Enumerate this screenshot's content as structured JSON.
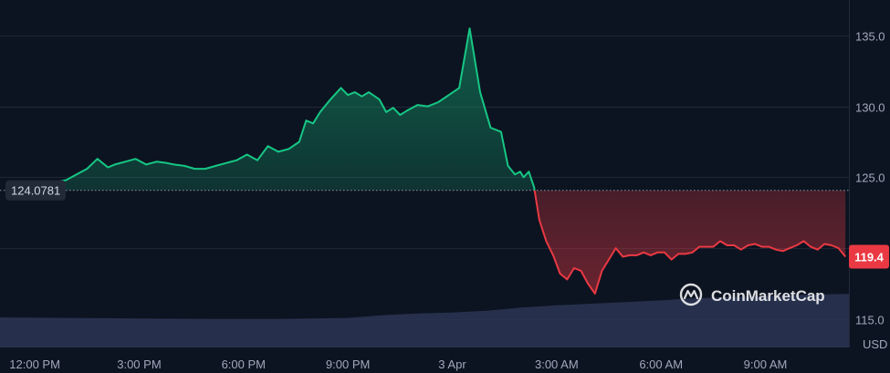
{
  "chart_data": {
    "type": "area",
    "baseline": 124.0781,
    "baseline_label": "124.0781",
    "last_value_label": "119.4",
    "currency": "USD",
    "ylim": [
      113.0,
      137.5
    ],
    "y_ticks": [
      {
        "value": 115.0,
        "label": "115.0"
      },
      {
        "value": 120.0,
        "label": "120.0"
      },
      {
        "value": 125.0,
        "label": "125.0"
      },
      {
        "value": 130.0,
        "label": "130.0"
      },
      {
        "value": 135.0,
        "label": "135.0"
      }
    ],
    "x_range": [
      -1.0,
      23.4
    ],
    "x_ticks": [
      {
        "t": 0,
        "label": "12:00 PM"
      },
      {
        "t": 3,
        "label": "3:00 PM"
      },
      {
        "t": 6,
        "label": "6:00 PM"
      },
      {
        "t": 9,
        "label": "9:00 PM"
      },
      {
        "t": 12,
        "label": "3 Apr"
      },
      {
        "t": 15,
        "label": "3:00 AM"
      },
      {
        "t": 18,
        "label": "6:00 AM"
      },
      {
        "t": 21,
        "label": "9:00 AM"
      }
    ],
    "price_series": {
      "t": [
        0.0,
        0.3,
        0.5,
        0.9,
        1.2,
        1.5,
        1.8,
        2.1,
        2.3,
        2.6,
        2.9,
        3.2,
        3.5,
        3.8,
        4.0,
        4.3,
        4.6,
        4.9,
        5.2,
        5.5,
        5.8,
        6.1,
        6.4,
        6.7,
        7.0,
        7.3,
        7.6,
        7.8,
        8.0,
        8.2,
        8.5,
        8.8,
        9.0,
        9.2,
        9.4,
        9.6,
        9.9,
        10.1,
        10.3,
        10.5,
        10.7,
        11.0,
        11.3,
        11.6,
        11.9,
        12.2,
        12.5,
        12.8,
        13.1,
        13.4,
        13.6,
        13.8,
        13.95,
        14.05,
        14.2,
        14.35,
        14.5,
        14.7,
        14.9,
        15.1,
        15.3,
        15.5,
        15.7,
        15.9,
        16.1,
        16.3,
        16.5,
        16.7,
        16.9,
        17.1,
        17.3,
        17.5,
        17.7,
        17.9,
        18.1,
        18.3,
        18.5,
        18.7,
        18.9,
        19.1,
        19.3,
        19.5,
        19.7,
        19.9,
        20.1,
        20.3,
        20.5,
        20.7,
        20.9,
        21.1,
        21.3,
        21.5,
        21.7,
        21.9,
        22.1,
        22.3,
        22.5,
        22.7,
        22.9,
        23.1,
        23.3
      ],
      "v": [
        124.6,
        124.4,
        124.6,
        124.8,
        125.2,
        125.6,
        126.3,
        125.7,
        125.9,
        126.1,
        126.3,
        125.9,
        126.1,
        126.0,
        125.9,
        125.8,
        125.6,
        125.6,
        125.8,
        126.0,
        126.2,
        126.6,
        126.2,
        127.2,
        126.8,
        127.0,
        127.5,
        129.0,
        128.8,
        129.6,
        130.5,
        131.3,
        130.8,
        131.0,
        130.7,
        131.0,
        130.5,
        129.6,
        129.9,
        129.4,
        129.7,
        130.1,
        130.0,
        130.3,
        130.8,
        131.3,
        135.5,
        131.0,
        128.5,
        128.2,
        125.8,
        125.2,
        125.4,
        125.0,
        125.4,
        124.3,
        122.0,
        120.5,
        119.5,
        118.2,
        117.8,
        118.6,
        118.4,
        117.5,
        116.8,
        118.4,
        119.2,
        120.0,
        119.4,
        119.5,
        119.5,
        119.7,
        119.5,
        119.7,
        119.7,
        119.2,
        119.6,
        119.6,
        119.7,
        120.1,
        120.1,
        120.1,
        120.5,
        120.2,
        120.2,
        119.9,
        120.2,
        120.3,
        120.1,
        120.1,
        119.9,
        119.8,
        120.0,
        120.2,
        120.5,
        120.1,
        119.9,
        120.3,
        120.2,
        120.0,
        119.4
      ]
    },
    "volume_series": {
      "t": [
        -1.0,
        1.0,
        3.0,
        5.0,
        7.0,
        9.0,
        10.0,
        11.0,
        12.0,
        13.0,
        14.0,
        15.0,
        16.0,
        17.0,
        18.0,
        19.0,
        20.0,
        21.0,
        22.0,
        23.4
      ],
      "v": [
        0.55,
        0.54,
        0.53,
        0.52,
        0.52,
        0.54,
        0.59,
        0.62,
        0.64,
        0.67,
        0.73,
        0.77,
        0.8,
        0.83,
        0.86,
        0.9,
        0.92,
        0.94,
        0.96,
        0.98
      ]
    }
  },
  "watermark": {
    "text": "CoinMarketCap"
  },
  "colors": {
    "background": "#0d1421",
    "up": "#16c784",
    "down": "#ea3943",
    "grid": "#1f2637",
    "volume": "#2c3554"
  }
}
